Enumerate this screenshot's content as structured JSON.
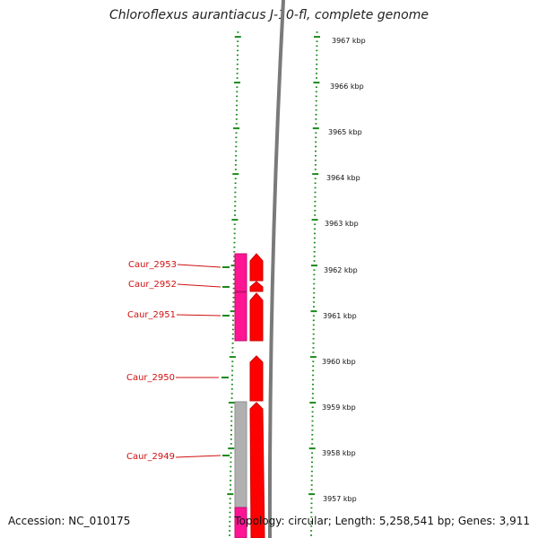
{
  "title": "Chloroflexus aurantiacus J-10-fl, complete genome",
  "footer": {
    "accession": "Accession: NC_010175",
    "info": "Topology: circular; Length: 5,258,541 bp; Genes: 3,911"
  },
  "kbp_labels": [
    "3967 kbp",
    "3966 kbp",
    "3965 kbp",
    "3964 kbp",
    "3963 kbp",
    "3962 kbp",
    "3961 kbp",
    "3960 kbp",
    "3959 kbp",
    "3958 kbp",
    "3957 kbp"
  ],
  "gene_labels": [
    "Caur_2953",
    "Caur_2952",
    "Caur_2951",
    "Caur_2950",
    "Caur_2949"
  ],
  "colors": {
    "tick": "#1a8a1a",
    "gene": "#ff0000",
    "gene_edge": "#cc0000",
    "cds_magenta": "#ff1493",
    "cds_grey": "#b0b0b0",
    "backbone": "#808080",
    "label": "#d01010"
  }
}
